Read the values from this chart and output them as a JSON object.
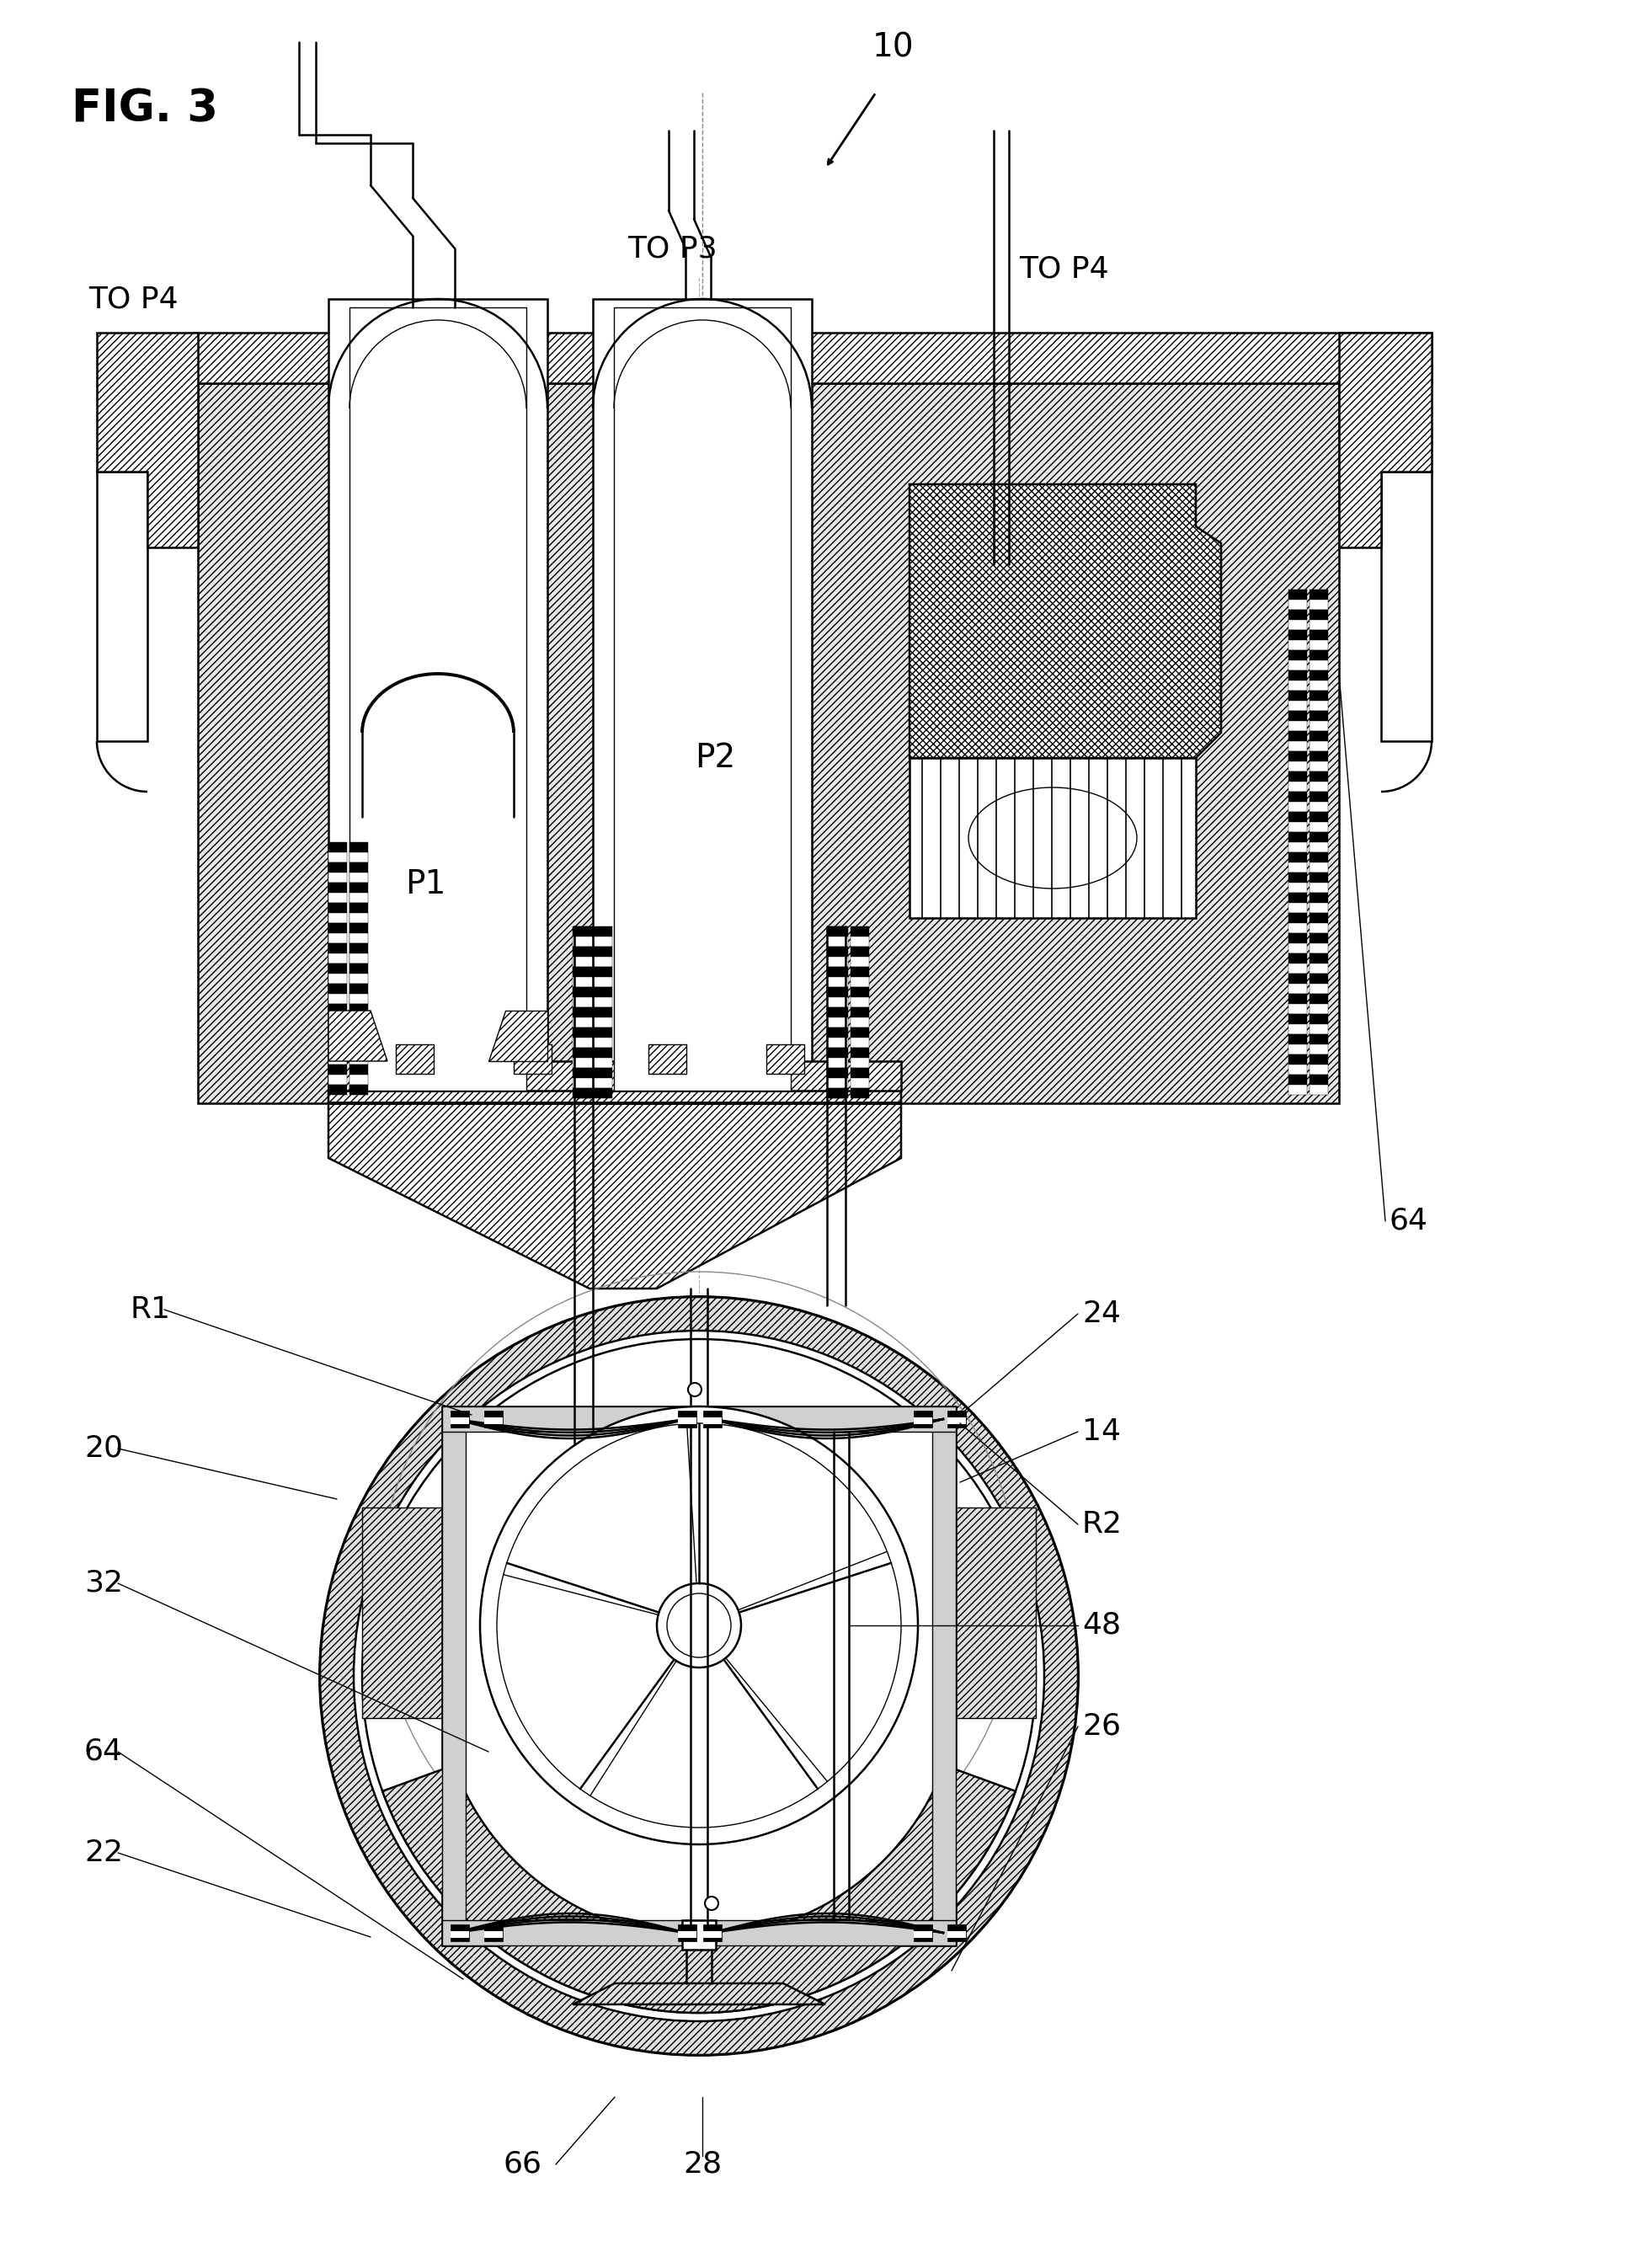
{
  "fig_label": "FIG. 3",
  "title_number": "10",
  "labels": {
    "TO_P4_left": "TO P4",
    "TO_P3": "TO P3",
    "TO_P4_right": "TO P4",
    "P1": "P1",
    "P2": "P2",
    "R1": "R1",
    "R2": "R2",
    "num_20": "20",
    "num_22": "22",
    "num_24": "24",
    "num_26": "26",
    "num_28": "28",
    "num_32": "32",
    "num_14": "14",
    "num_48": "48",
    "num_64_right": "64",
    "num_64_left": "64",
    "num_66": "66"
  },
  "bg_color": "#ffffff",
  "line_color": "#000000"
}
